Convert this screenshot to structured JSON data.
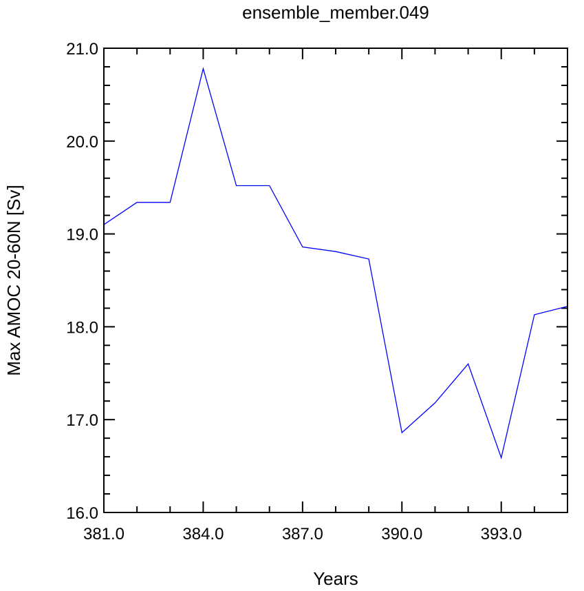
{
  "chart_data": {
    "type": "line",
    "title": "ensemble_member.049",
    "xlabel": "Years",
    "ylabel": "Max AMOC 20-60N [Sv]",
    "xlim": [
      381,
      395
    ],
    "ylim": [
      16,
      21
    ],
    "x_ticks": [
      381,
      384,
      387,
      390,
      393
    ],
    "x_tick_labels": [
      "381.0",
      "384.0",
      "387.0",
      "390.0",
      "393.0"
    ],
    "y_ticks": [
      16,
      17,
      18,
      19,
      20,
      21
    ],
    "y_tick_labels": [
      "16.0",
      "17.0",
      "18.0",
      "19.0",
      "20.0",
      "21.0"
    ],
    "grid": false,
    "series": [
      {
        "color": "#0000ff",
        "x": [
          381,
          382,
          383,
          384,
          385,
          386,
          387,
          388,
          389,
          390,
          391,
          392,
          393,
          394,
          395
        ],
        "y": [
          19.1,
          19.34,
          19.34,
          20.78,
          19.52,
          19.52,
          18.86,
          18.81,
          18.73,
          16.86,
          17.18,
          17.6,
          16.59,
          18.13,
          18.22
        ]
      }
    ]
  }
}
